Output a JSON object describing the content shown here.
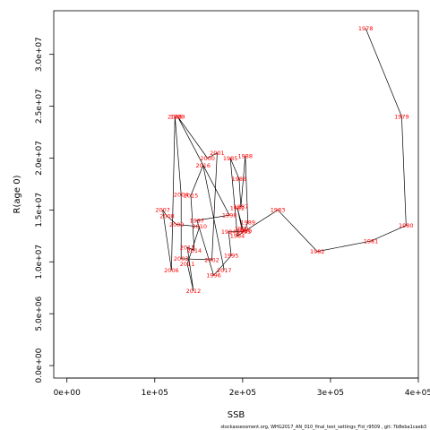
{
  "chart_data": {
    "type": "line",
    "xlabel": "SSB",
    "ylabel": "R(age 0)",
    "xlim": [
      -15000,
      400000
    ],
    "ylim": [
      -1200000,
      34200000
    ],
    "x_ticks": [
      0,
      100000,
      200000,
      300000,
      400000
    ],
    "x_tick_labels": [
      "0e+00",
      "1e+05",
      "2e+05",
      "3e+05",
      "4e+05"
    ],
    "y_ticks": [
      0,
      5000000,
      10000000,
      15000000,
      20000000,
      25000000,
      30000000
    ],
    "y_tick_labels": [
      "0.0e+00",
      "5.0e+06",
      "1.0e+07",
      "1.5e+07",
      "2.0e+07",
      "2.5e+07",
      "3.0e+07"
    ],
    "grid": false,
    "line_color": "#000000",
    "label_color": "#ff0000",
    "points": [
      {
        "year": "1978",
        "x": 340000,
        "y": 32500000
      },
      {
        "year": "1979",
        "x": 381000,
        "y": 24000000
      },
      {
        "year": "1980",
        "x": 386000,
        "y": 13500000
      },
      {
        "year": "1981",
        "x": 346000,
        "y": 12000000
      },
      {
        "year": "1982",
        "x": 285000,
        "y": 11000000
      },
      {
        "year": "1983",
        "x": 240000,
        "y": 15000000
      },
      {
        "year": "1984",
        "x": 194000,
        "y": 12500000
      },
      {
        "year": "1985",
        "x": 186000,
        "y": 20000000
      },
      {
        "year": "1986",
        "x": 196000,
        "y": 18000000
      },
      {
        "year": "1987",
        "x": 198000,
        "y": 15300000
      },
      {
        "year": "1988",
        "x": 203000,
        "y": 20200000
      },
      {
        "year": "1989",
        "x": 206000,
        "y": 13800000
      },
      {
        "year": "1990",
        "x": 202000,
        "y": 13000000
      },
      {
        "year": "1991",
        "x": 199000,
        "y": 13200000
      },
      {
        "year": "1992",
        "x": 194000,
        "y": 15200000
      },
      {
        "year": "1993",
        "x": 201000,
        "y": 12900000
      },
      {
        "year": "1994",
        "x": 184000,
        "y": 12900000
      },
      {
        "year": "1995",
        "x": 187000,
        "y": 10600000
      },
      {
        "year": "1996",
        "x": 167000,
        "y": 8700000
      },
      {
        "year": "1997",
        "x": 148000,
        "y": 14000000
      },
      {
        "year": "1998",
        "x": 185000,
        "y": 14500000
      },
      {
        "year": "1999",
        "x": 126000,
        "y": 24000000
      },
      {
        "year": "2000",
        "x": 160000,
        "y": 20000000
      },
      {
        "year": "2001",
        "x": 171000,
        "y": 20500000
      },
      {
        "year": "2002",
        "x": 165000,
        "y": 10200000
      },
      {
        "year": "2003",
        "x": 130000,
        "y": 10300000
      },
      {
        "year": "2004",
        "x": 130000,
        "y": 16500000
      },
      {
        "year": "2005",
        "x": 123000,
        "y": 24000000
      },
      {
        "year": "2006",
        "x": 119000,
        "y": 9200000
      },
      {
        "year": "2007",
        "x": 109000,
        "y": 15000000
      },
      {
        "year": "2008",
        "x": 114000,
        "y": 14400000
      },
      {
        "year": "2009",
        "x": 125000,
        "y": 13600000
      },
      {
        "year": "2010",
        "x": 151000,
        "y": 13400000
      },
      {
        "year": "2011",
        "x": 137000,
        "y": 9800000
      },
      {
        "year": "2012",
        "x": 144000,
        "y": 7200000
      },
      {
        "year": "2013",
        "x": 137000,
        "y": 11400000
      },
      {
        "year": "2014",
        "x": 145000,
        "y": 11100000
      },
      {
        "year": "2015",
        "x": 141000,
        "y": 16400000
      },
      {
        "year": "2016",
        "x": 155000,
        "y": 19300000
      },
      {
        "year": "2017",
        "x": 179000,
        "y": 9200000
      }
    ]
  },
  "footer": "stockassessment.org,  WHG2017_AN_010_final_test_settings_Fld_r9509 ,  git: 7b8eba1caeb3"
}
